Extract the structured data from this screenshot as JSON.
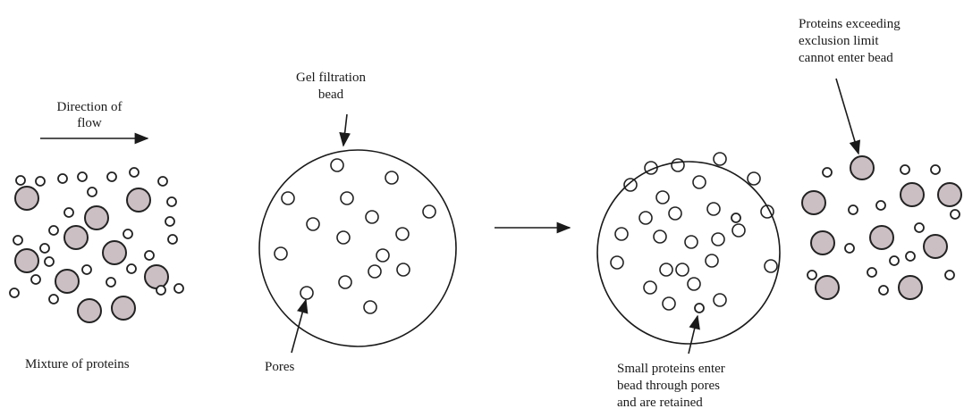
{
  "flow_label": [
    "Direction of",
    "flow"
  ],
  "mixture_label": "Mixture of proteins",
  "bead_label": [
    "Gel filtration",
    "bead"
  ],
  "pores_label": "Pores",
  "excluded_label": [
    "Proteins exceeding",
    "exclusion limit",
    "cannot enter bead"
  ],
  "retained_label": [
    "Small proteins enter",
    "bead through pores",
    "and are retained"
  ]
}
